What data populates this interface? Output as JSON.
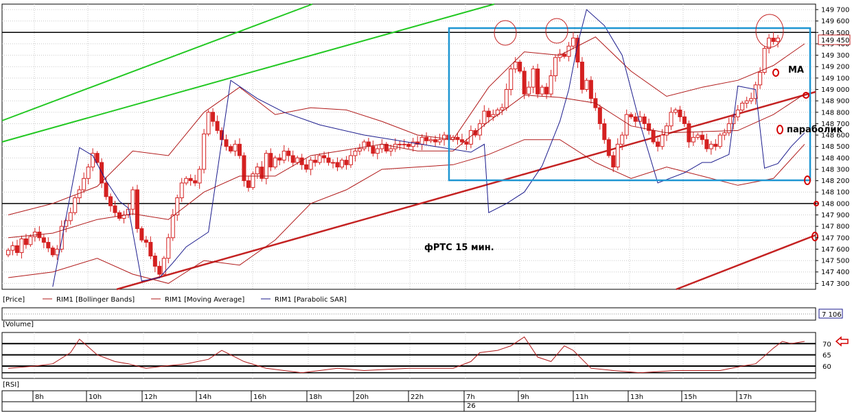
{
  "legend": {
    "price": "[Price]",
    "bollinger": "RIM1 [Bollinger Bands]",
    "ma": "RIM1 [Moving Average]",
    "sar": "RIM1 [Parabolic SAR]"
  },
  "panels": {
    "volume": "[Volume]",
    "rsi": "[RSI]"
  },
  "badges": {
    "last_price": "149 450",
    "volume_value": "7 106"
  },
  "annotations": {
    "instrument": "фРТС  15 мин.",
    "ma": "МА",
    "parabolic": "параболик"
  },
  "colors": {
    "candle": "#d42020",
    "bollinger": "#b01818",
    "sar": "#1a1a8c",
    "trend": "#c42222",
    "channel": "#22c822",
    "box": "#1e96d2",
    "rsi": "#b01818"
  },
  "x_labels": [
    "8h",
    "10h",
    "12h",
    "14h",
    "16h",
    "18h",
    "20h",
    "22h",
    "7h",
    "9h",
    "11h",
    "13h",
    "15h",
    "17h"
  ],
  "date_label": "26",
  "chart_data": [
    {
      "type": "candlestick",
      "title": "фРТС  15 мин.",
      "y_ticks": [
        149700,
        149600,
        149500,
        149400,
        149300,
        149200,
        149100,
        149000,
        148900,
        148800,
        148700,
        148600,
        148500,
        148400,
        148300,
        148200,
        148100,
        148000,
        147900,
        147800,
        147700,
        147600,
        147500,
        147400,
        147300
      ],
      "ylim": [
        147220,
        149725
      ],
      "horizontal_levels": [
        149500,
        148000
      ],
      "last_price": 149450,
      "series": [
        {
          "name": "RIM1 [Price]",
          "close": [
            147590,
            147630,
            147570,
            147690,
            147640,
            147710,
            147750,
            147700,
            147660,
            147610,
            147550,
            147600,
            147800,
            147850,
            147920,
            148050,
            148120,
            148220,
            148320,
            148440,
            148360,
            148180,
            148060,
            147980,
            147920,
            147870,
            147900,
            147950,
            148120,
            147780,
            147680,
            147660,
            147540,
            147450,
            147380,
            147520,
            147700,
            147900,
            148050,
            148180,
            148220,
            148200,
            148180,
            148300,
            148610,
            148800,
            148720,
            148640,
            148560,
            148500,
            148460,
            148520,
            148420,
            148200,
            148140,
            148260,
            148320,
            148220,
            148440,
            148320,
            148400,
            148380,
            148460,
            148420,
            148360,
            148400,
            148340,
            148300,
            148380,
            148360,
            148420,
            148400,
            148360,
            148360,
            148320,
            148380,
            148340,
            148420,
            148460,
            148480,
            148540,
            148500,
            148440,
            148480,
            148520,
            148460,
            148480,
            148520,
            148520,
            148520,
            148500,
            148540,
            148520,
            148580,
            148550,
            148560,
            148540,
            148560,
            148600,
            148560,
            148580,
            148560,
            148540,
            148520,
            148640,
            148600,
            148700,
            148810,
            148760,
            148780,
            148820,
            148840,
            149000,
            149180,
            149240,
            149160,
            148960,
            149020,
            149180,
            148960,
            149020,
            148960,
            149120,
            149280,
            149310,
            149290,
            149380,
            149450,
            149240,
            149000,
            149080,
            148920,
            148840,
            148700,
            148560,
            148420,
            148320,
            148520,
            148600,
            148780,
            148760,
            148720,
            148760,
            148700,
            148640,
            148540,
            148500,
            148600,
            148680,
            148800,
            148820,
            148760,
            148700,
            148540,
            148580,
            148600,
            148560,
            148480,
            148520,
            148500,
            148600,
            148620,
            148700,
            148760,
            148820,
            148880,
            148900,
            148920,
            149040,
            149150,
            149360,
            149450,
            149420,
            149450
          ]
        },
        {
          "name": "RIM1 [Bollinger Bands] upper",
          "values": [
            [
              0,
              147900
            ],
            [
              10,
              148000
            ],
            [
              20,
              148150
            ],
            [
              28,
              148460
            ],
            [
              36,
              148420
            ],
            [
              44,
              148800
            ],
            [
              52,
              149020
            ],
            [
              60,
              148780
            ],
            [
              68,
              148840
            ],
            [
              76,
              148820
            ],
            [
              84,
              148720
            ],
            [
              92,
              148600
            ],
            [
              100,
              148560
            ],
            [
              108,
              149020
            ],
            [
              116,
              149330
            ],
            [
              124,
              149300
            ],
            [
              132,
              149460
            ],
            [
              140,
              149160
            ],
            [
              148,
              148940
            ],
            [
              156,
              149020
            ],
            [
              164,
              149080
            ],
            [
              172,
              149210
            ],
            [
              179,
              149400
            ]
          ]
        },
        {
          "name": "RIM1 [Bollinger Bands] lower",
          "values": [
            [
              0,
              147350
            ],
            [
              10,
              147400
            ],
            [
              20,
              147520
            ],
            [
              28,
              147380
            ],
            [
              36,
              147300
            ],
            [
              44,
              147500
            ],
            [
              52,
              147460
            ],
            [
              60,
              147680
            ],
            [
              68,
              148000
            ],
            [
              76,
              148120
            ],
            [
              84,
              148300
            ],
            [
              92,
              148320
            ],
            [
              100,
              148340
            ],
            [
              108,
              148430
            ],
            [
              116,
              148560
            ],
            [
              124,
              148560
            ],
            [
              132,
              148360
            ],
            [
              140,
              148220
            ],
            [
              148,
              148320
            ],
            [
              156,
              148240
            ],
            [
              164,
              148160
            ],
            [
              172,
              148220
            ],
            [
              179,
              148520
            ]
          ]
        },
        {
          "name": "RIM1 [Moving Average]",
          "values": [
            [
              0,
              147700
            ],
            [
              10,
              147740
            ],
            [
              20,
              147860
            ],
            [
              28,
              147910
            ],
            [
              36,
              147860
            ],
            [
              44,
              148100
            ],
            [
              52,
              148240
            ],
            [
              60,
              148240
            ],
            [
              68,
              148420
            ],
            [
              76,
              148470
            ],
            [
              84,
              148520
            ],
            [
              92,
              148460
            ],
            [
              100,
              148460
            ],
            [
              108,
              148720
            ],
            [
              116,
              148950
            ],
            [
              124,
              148930
            ],
            [
              132,
              148880
            ],
            [
              140,
              148680
            ],
            [
              148,
              148620
            ],
            [
              156,
              148630
            ],
            [
              164,
              148640
            ],
            [
              172,
              148780
            ],
            [
              179,
              148960
            ]
          ]
        },
        {
          "name": "RIM1 [Parabolic SAR]",
          "values": [
            [
              10,
              147270
            ],
            [
              16,
              148490
            ],
            [
              19,
              148420
            ],
            [
              22,
              148200
            ],
            [
              25,
              148020
            ],
            [
              27,
              147960
            ],
            [
              30,
              147320
            ],
            [
              34,
              147350
            ],
            [
              37,
              147480
            ],
            [
              40,
              147620
            ],
            [
              45,
              147750
            ],
            [
              50,
              149080
            ],
            [
              56,
              148920
            ],
            [
              62,
              148800
            ],
            [
              70,
              148690
            ],
            [
              80,
              148600
            ],
            [
              88,
              148550
            ],
            [
              96,
              148500
            ],
            [
              104,
              148450
            ],
            [
              107,
              148520
            ],
            [
              108,
              147920
            ],
            [
              112,
              148000
            ],
            [
              116,
              148100
            ],
            [
              120,
              148330
            ],
            [
              124,
              148720
            ],
            [
              126,
              149000
            ],
            [
              128,
              149400
            ],
            [
              130,
              149700
            ],
            [
              134,
              149560
            ],
            [
              138,
              149300
            ],
            [
              142,
              148700
            ],
            [
              146,
              148180
            ],
            [
              152,
              148270
            ],
            [
              156,
              148360
            ],
            [
              158,
              148360
            ],
            [
              162,
              148430
            ],
            [
              164,
              149030
            ],
            [
              168,
              149000
            ],
            [
              170,
              148310
            ],
            [
              173,
              148350
            ],
            [
              176,
              148500
            ],
            [
              179,
              148620
            ]
          ]
        },
        {
          "name": "RIM1 [RSI]",
          "values": [
            [
              0,
              59
            ],
            [
              6,
              60
            ],
            [
              10,
              61
            ],
            [
              14,
              66
            ],
            [
              16,
              72
            ],
            [
              20,
              65
            ],
            [
              24,
              62
            ],
            [
              27,
              61
            ],
            [
              31,
              59
            ],
            [
              35,
              60
            ],
            [
              40,
              61
            ],
            [
              45,
              63
            ],
            [
              48,
              67
            ],
            [
              50,
              65
            ],
            [
              53,
              62
            ],
            [
              58,
              59
            ],
            [
              62,
              58
            ],
            [
              66,
              57
            ],
            [
              70,
              58
            ],
            [
              74,
              59
            ],
            [
              80,
              58
            ],
            [
              90,
              59
            ],
            [
              100,
              59
            ],
            [
              104,
              62
            ],
            [
              106,
              66
            ],
            [
              110,
              67
            ],
            [
              113,
              69
            ],
            [
              116,
              73
            ],
            [
              119,
              64
            ],
            [
              122,
              62
            ],
            [
              125,
              69
            ],
            [
              127,
              67
            ],
            [
              131,
              59
            ],
            [
              136,
              58
            ],
            [
              142,
              57
            ],
            [
              150,
              58
            ],
            [
              160,
              58
            ],
            [
              165,
              60
            ],
            [
              168,
              61
            ],
            [
              172,
              68
            ],
            [
              174,
              71
            ],
            [
              176,
              70
            ],
            [
              179,
              71
            ]
          ]
        }
      ],
      "rsi_levels": [
        70,
        65,
        60
      ],
      "xlabel": "",
      "ylabel": ""
    }
  ]
}
